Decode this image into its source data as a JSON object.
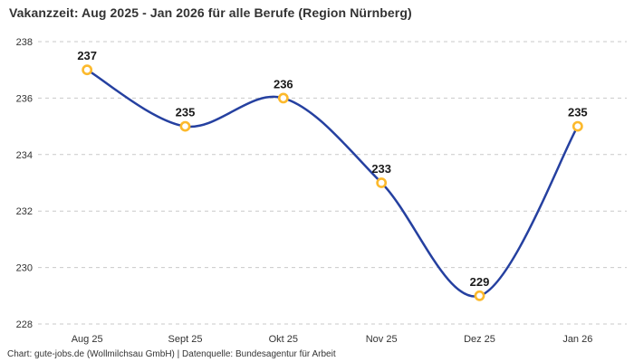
{
  "page": {
    "title": "Vakanzzeit: Aug 2025 - Jan 2026 für alle Berufe (Region Nürnberg)",
    "footer": "Chart: gute-jobs.de (Wollmilchsau GmbH) | Datenquelle: Bundesagentur für Arbeit"
  },
  "chart_data": {
    "type": "line",
    "title": "Vakanzzeit: Aug 2025 - Jan 2026 für alle Berufe (Region Nürnberg)",
    "categories": [
      "Aug 25",
      "Sept 25",
      "Okt 25",
      "Nov 25",
      "Dez 25",
      "Jan 26"
    ],
    "values": [
      237,
      235,
      236,
      233,
      229,
      235
    ],
    "xlabel": "",
    "ylabel": "",
    "ylim": [
      228,
      238
    ],
    "yticks": [
      228,
      230,
      232,
      234,
      236,
      238
    ],
    "grid": "horizontal-dashed",
    "legend": "none",
    "smooth": true,
    "colors": {
      "line": "#2540a0",
      "marker_ring": "#fcb92c",
      "marker_fill": "#ffffff",
      "value_label": "#1a1a1a",
      "grid": "#c9c9c9",
      "tick_text": "#333333"
    }
  }
}
